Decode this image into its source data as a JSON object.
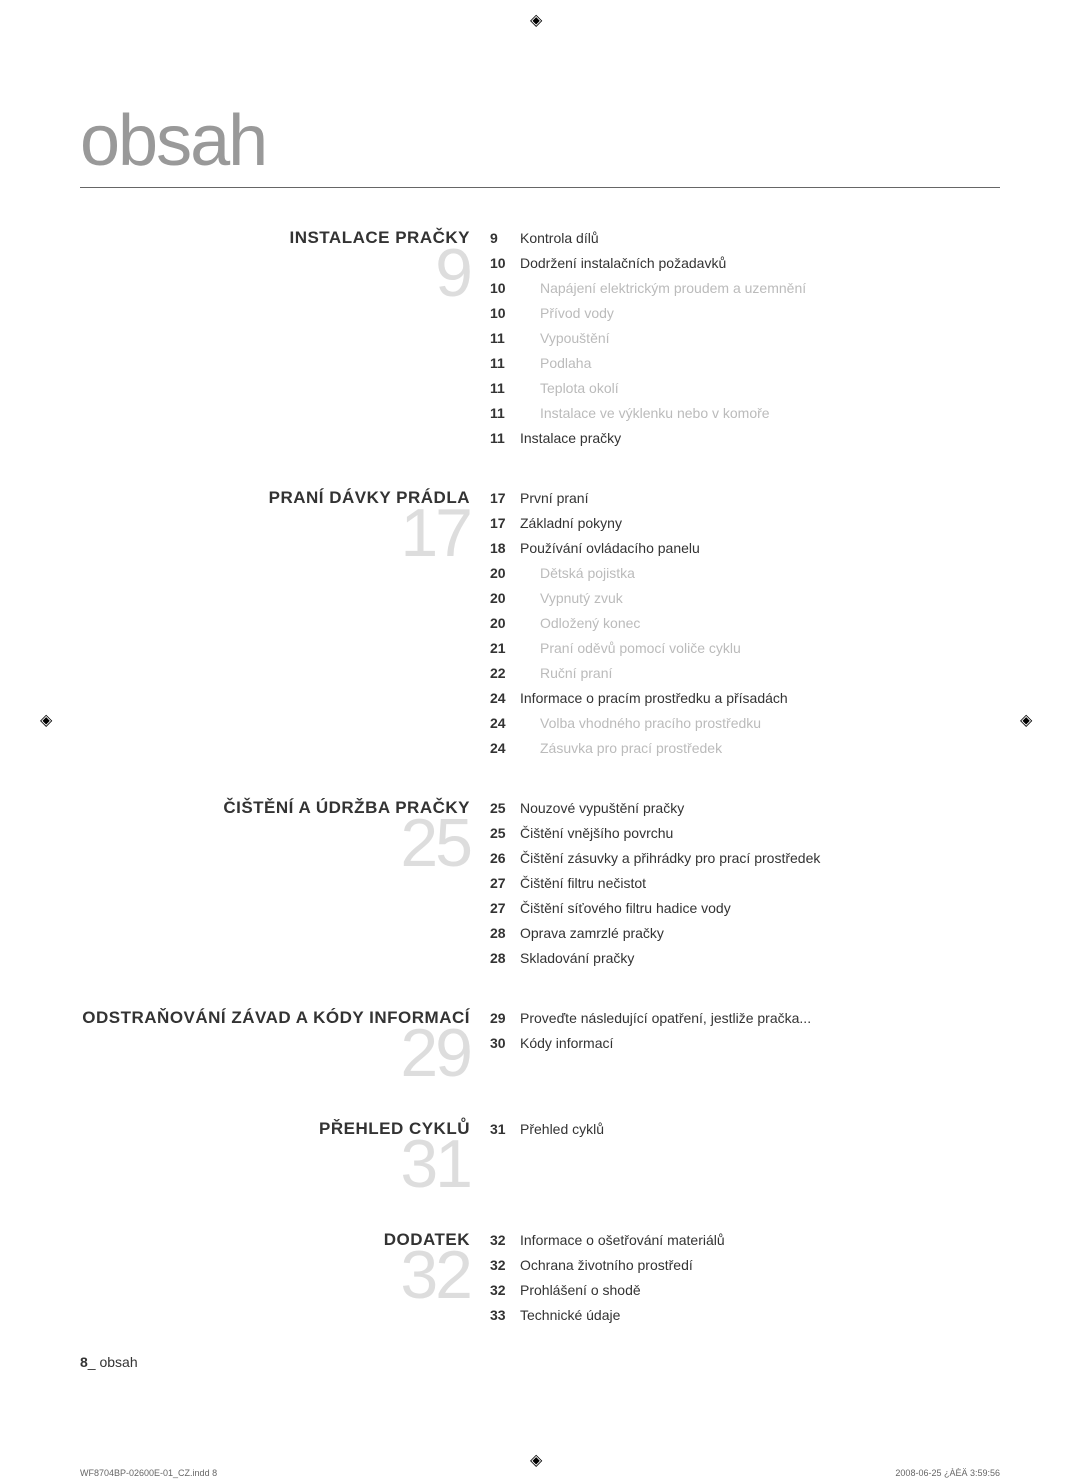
{
  "title": "obsah",
  "sections": [
    {
      "heading": "INSTALACE PRAČKY",
      "number": "9",
      "items": [
        {
          "page": "9",
          "text": "Kontrola dílů",
          "sub": false
        },
        {
          "page": "10",
          "text": "Dodržení instalačních požadavků",
          "sub": false
        },
        {
          "page": "10",
          "text": "Napájení elektrickým proudem a uzemnění",
          "sub": true
        },
        {
          "page": "10",
          "text": "Přívod vody",
          "sub": true
        },
        {
          "page": "11",
          "text": "Vypouštění",
          "sub": true
        },
        {
          "page": "11",
          "text": "Podlaha",
          "sub": true
        },
        {
          "page": "11",
          "text": "Teplota okolí",
          "sub": true
        },
        {
          "page": "11",
          "text": "Instalace ve výklenku nebo v komoře",
          "sub": true
        },
        {
          "page": "11",
          "text": "Instalace pračky",
          "sub": false
        }
      ]
    },
    {
      "heading": "PRANÍ DÁVKY PRÁDLA",
      "number": "17",
      "items": [
        {
          "page": "17",
          "text": "První praní",
          "sub": false
        },
        {
          "page": "17",
          "text": "Základní pokyny",
          "sub": false
        },
        {
          "page": "18",
          "text": "Používání ovládacího panelu",
          "sub": false
        },
        {
          "page": "20",
          "text": "Dětská pojistka",
          "sub": true
        },
        {
          "page": "20",
          "text": "Vypnutý zvuk",
          "sub": true
        },
        {
          "page": "20",
          "text": "Odložený konec",
          "sub": true
        },
        {
          "page": "21",
          "text": "Praní oděvů pomocí voliče cyklu",
          "sub": true
        },
        {
          "page": "22",
          "text": "Ruční praní",
          "sub": true
        },
        {
          "page": "24",
          "text": "Informace o pracím prostředku a přísadách",
          "sub": false
        },
        {
          "page": "24",
          "text": "Volba vhodného pracího prostředku",
          "sub": true
        },
        {
          "page": "24",
          "text": "Zásuvka pro prací prostředek",
          "sub": true
        }
      ]
    },
    {
      "heading": "ČIŠTĚNÍ A ÚDRŽBA PRAČKY",
      "number": "25",
      "items": [
        {
          "page": "25",
          "text": "Nouzové vypuštění pračky",
          "sub": false
        },
        {
          "page": "25",
          "text": "Čištění vnějšího povrchu",
          "sub": false
        },
        {
          "page": "26",
          "text": "Čištění zásuvky a přihrádky pro prací prostředek",
          "sub": false
        },
        {
          "page": "27",
          "text": "Čištění filtru nečistot",
          "sub": false
        },
        {
          "page": "27",
          "text": "Čištění síťového filtru hadice vody",
          "sub": false
        },
        {
          "page": "28",
          "text": "Oprava zamrzlé pračky",
          "sub": false
        },
        {
          "page": "28",
          "text": "Skladování pračky",
          "sub": false
        }
      ]
    },
    {
      "heading": "ODSTRAŇOVÁNÍ ZÁVAD A KÓDY INFORMACÍ",
      "number": "29",
      "items": [
        {
          "page": "29",
          "text": "Proveďte následující opatření, jestliže pračka...",
          "sub": false
        },
        {
          "page": "30",
          "text": "Kódy informací",
          "sub": false
        }
      ]
    },
    {
      "heading": "PŘEHLED CYKLŮ",
      "number": "31",
      "items": [
        {
          "page": "31",
          "text": "Přehled cyklů",
          "sub": false
        }
      ]
    },
    {
      "heading": "DODATEK",
      "number": "32",
      "items": [
        {
          "page": "32",
          "text": "Informace o ošetřování materiálů",
          "sub": false
        },
        {
          "page": "32",
          "text": "Ochrana životního prostředí",
          "sub": false
        },
        {
          "page": "32",
          "text": "Prohlášení o shodě",
          "sub": false
        },
        {
          "page": "33",
          "text": "Technické údaje",
          "sub": false
        }
      ]
    }
  ],
  "footer": {
    "page": "8",
    "label": "_ obsah"
  },
  "printInfo": {
    "left": "WF8704BP-02600E-01_CZ.indd   8",
    "right": "2008-06-25   ¿ÀÈÄ 3:59:56"
  }
}
